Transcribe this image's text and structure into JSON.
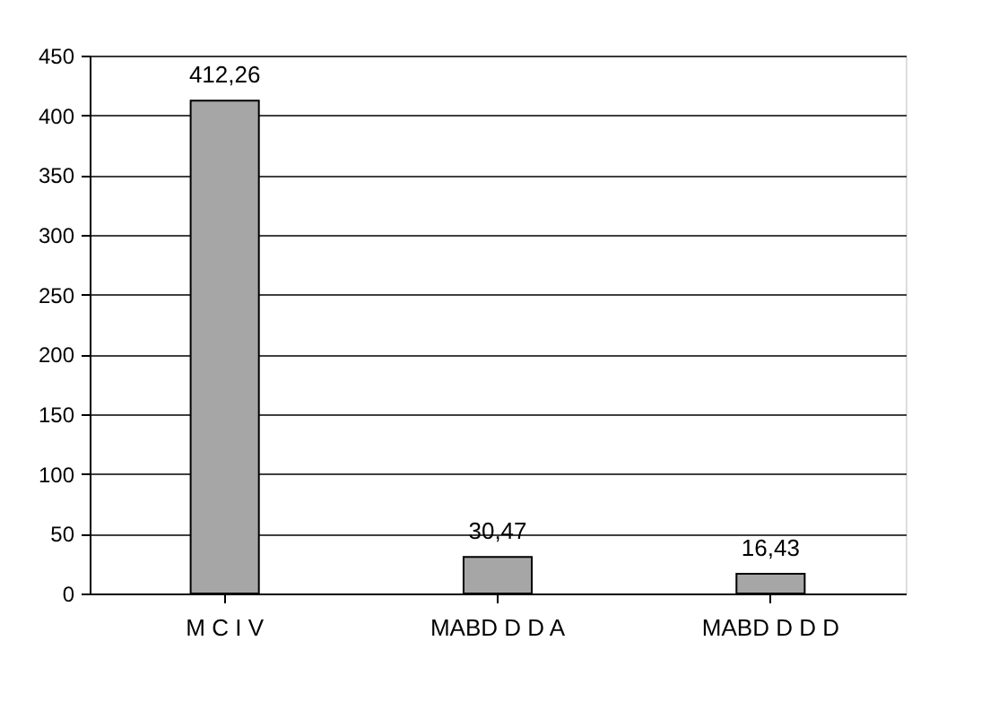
{
  "chart_data": {
    "type": "bar",
    "categories": [
      "M C I V",
      "MABD D D A",
      "MABD D D D"
    ],
    "values": [
      412.26,
      30.47,
      16.43
    ],
    "value_labels": [
      "412,26",
      "30,47",
      "16,43"
    ],
    "color": "#a6a6a6",
    "ylim": [
      0,
      450
    ],
    "yticks": [
      0,
      50,
      100,
      150,
      200,
      250,
      300,
      350,
      400,
      450
    ],
    "grid": "y"
  }
}
